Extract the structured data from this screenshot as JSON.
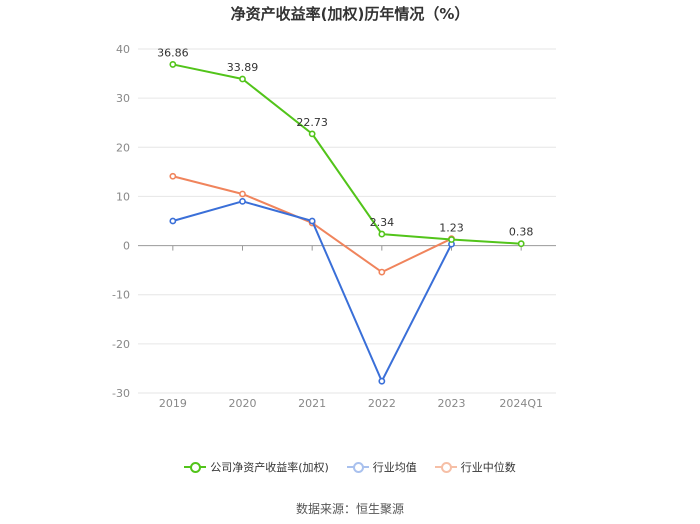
{
  "chart_data": {
    "type": "line",
    "title": "净资产收益率(加权)历年情况（%）",
    "categories": [
      "2019",
      "2020",
      "2021",
      "2022",
      "2023",
      "2024Q1"
    ],
    "ylim": [
      -30,
      40
    ],
    "yticks": [
      -30,
      -20,
      -10,
      0,
      10,
      20,
      30,
      40
    ],
    "grid": true,
    "legend_position": "bottom",
    "series": [
      {
        "name": "公司净资产收益率(加权)",
        "color": "#52c41a",
        "values": [
          36.86,
          33.89,
          22.73,
          2.34,
          1.23,
          0.38
        ],
        "labels": [
          "36.86",
          "33.89",
          "22.73",
          "2.34",
          "1.23",
          "0.38"
        ]
      },
      {
        "name": "行业均值",
        "color": "#3a6fd8",
        "values": [
          5.0,
          9.0,
          5.0,
          -27.6,
          0.3,
          null
        ]
      },
      {
        "name": "行业中位数",
        "color": "#f0845c",
        "values": [
          14.1,
          10.5,
          4.6,
          -5.4,
          1.4,
          null
        ]
      }
    ]
  },
  "source": "数据来源：恒生聚源"
}
